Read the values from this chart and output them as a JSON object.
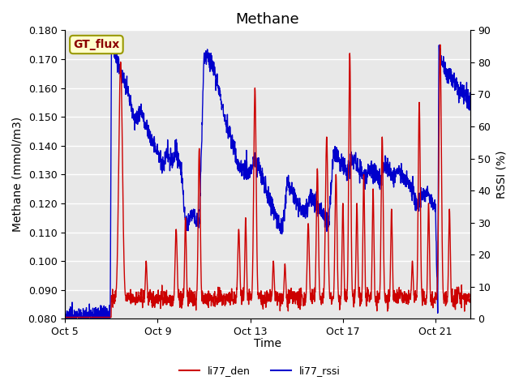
{
  "title": "Methane",
  "xlabel": "Time",
  "ylabel_left": "Methane (mmol/m3)",
  "ylabel_right": "RSSI (%)",
  "ylim_left": [
    0.08,
    0.18
  ],
  "ylim_right": [
    0,
    90
  ],
  "yticks_left": [
    0.08,
    0.09,
    0.1,
    0.11,
    0.12,
    0.13,
    0.14,
    0.15,
    0.16,
    0.17,
    0.18
  ],
  "yticks_right": [
    0,
    10,
    20,
    30,
    40,
    50,
    60,
    70,
    80,
    90
  ],
  "xtick_labels": [
    "Oct 5",
    "Oct 9",
    "Oct 13",
    "Oct 17",
    "Oct 21"
  ],
  "color_red": "#cc0000",
  "color_blue": "#0000cc",
  "legend_label_red": "li77_den",
  "legend_label_blue": "li77_rssi",
  "box_label": "GT_flux",
  "box_facecolor": "#ffffcc",
  "box_edgecolor": "#999900",
  "bg_color": "#e8e8e8",
  "grid_color": "#ffffff",
  "title_fontsize": 13,
  "axis_label_fontsize": 10,
  "tick_fontsize": 9
}
